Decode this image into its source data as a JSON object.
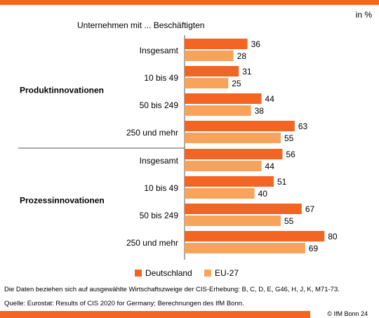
{
  "colors": {
    "deutschland": "#f26522",
    "eu27": "#f7a35c",
    "bar_accent": "#f26522"
  },
  "unit": "in %",
  "group_header": "Unternehmen  mit ... Beschäftigten",
  "footnote": "Die Daten beziehen sich auf ausgewählte Wirtschaftszweige der CIS-Erhebung:  B, C, D, E,  G46,  H, J, K, M71-73.",
  "source": "Quelle:  Eurostat: Results of CIS 2020 for Germany;  Berechnungen  des IfM Bonn.",
  "copyright": "© IfM  Bonn 24",
  "chart_data": {
    "type": "bar",
    "orientation": "horizontal",
    "xlim": [
      0,
      100
    ],
    "groups": [
      {
        "label": "Produktinnovationen",
        "categories": [
          "Insgesamt",
          "10 bis 49",
          "50 bis 249",
          "250 und mehr"
        ]
      },
      {
        "label": "Prozessinnovationen",
        "categories": [
          "Insgesamt",
          "10 bis 49",
          "50 bis 249",
          "250 und mehr"
        ]
      }
    ],
    "series": [
      {
        "name": "Deutschland",
        "values": [
          36,
          31,
          44,
          63,
          56,
          51,
          67,
          80
        ]
      },
      {
        "name": "EU-27",
        "values": [
          28,
          25,
          38,
          55,
          44,
          40,
          55,
          69
        ]
      }
    ],
    "legend": "bottom"
  }
}
